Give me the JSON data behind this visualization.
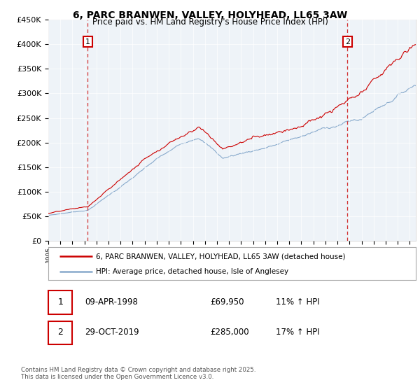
{
  "title_line1": "6, PARC BRANWEN, VALLEY, HOLYHEAD, LL65 3AW",
  "title_line2": "Price paid vs. HM Land Registry's House Price Index (HPI)",
  "legend_label1": "6, PARC BRANWEN, VALLEY, HOLYHEAD, LL65 3AW (detached house)",
  "legend_label2": "HPI: Average price, detached house, Isle of Anglesey",
  "annotation1_date": "09-APR-1998",
  "annotation1_price": "£69,950",
  "annotation1_hpi": "11% ↑ HPI",
  "annotation2_date": "29-OCT-2019",
  "annotation2_price": "£285,000",
  "annotation2_hpi": "17% ↑ HPI",
  "footer": "Contains HM Land Registry data © Crown copyright and database right 2025.\nThis data is licensed under the Open Government Licence v3.0.",
  "sale1_year": 1998.27,
  "sale1_price": 69950,
  "sale2_year": 2019.83,
  "sale2_price": 285000,
  "house_color": "#cc0000",
  "hpi_color": "#88aacc",
  "sale_line_color": "#cc0000",
  "chart_bg": "#eef3f8",
  "ylim_max": 450000,
  "ylim_min": 0,
  "xlim_min": 1995,
  "xlim_max": 2025.5
}
